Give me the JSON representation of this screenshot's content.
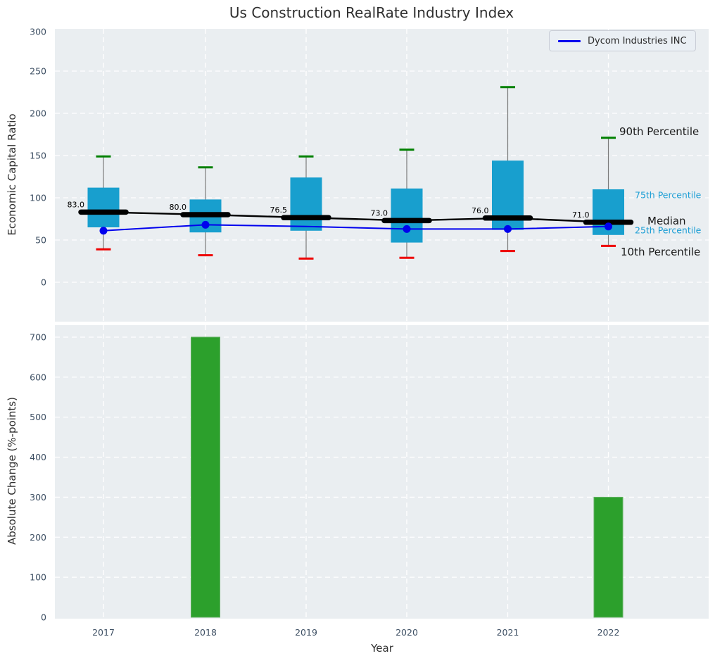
{
  "figure": {
    "title": "Us Construction RealRate Industry Index"
  },
  "legend": {
    "label": "Dycom Industries INC",
    "line_color": "#0000ee"
  },
  "axes": {
    "top_ylabel": "Economic Capital Ratio",
    "bottom_ylabel": "Absolute Change (%-points)",
    "xlabel": "Year"
  },
  "chart_data": [
    {
      "type": "boxplot-timeseries",
      "title": "Us Construction RealRate Industry Index",
      "ylabel": "Economic Capital Ratio",
      "categories": [
        "2017",
        "2018",
        "2019",
        "2020",
        "2021",
        "2022"
      ],
      "yticks": [
        0,
        50,
        100,
        150,
        200,
        250,
        300
      ],
      "ylim": [
        -46,
        300
      ],
      "grid": true,
      "legend_position": "upper right",
      "series": [
        {
          "name": "90th Percentile",
          "values": [
            149,
            136,
            149,
            157,
            231,
            171
          ]
        },
        {
          "name": "75th Percentile",
          "values": [
            112,
            98,
            124,
            111,
            144,
            110
          ]
        },
        {
          "name": "Median",
          "values": [
            83.0,
            80.0,
            76.5,
            73.0,
            76.0,
            71.0
          ]
        },
        {
          "name": "25th Percentile",
          "values": [
            65,
            59,
            61,
            47,
            62,
            56
          ]
        },
        {
          "name": "10th Percentile",
          "values": [
            39,
            32,
            28,
            29,
            37,
            43
          ]
        },
        {
          "name": "Dycom Industries INC",
          "values": [
            61,
            68,
            66,
            63,
            63,
            66
          ]
        }
      ],
      "company_markers": [
        true,
        true,
        false,
        true,
        true,
        true
      ],
      "median_labels": [
        "83.0",
        "80.0",
        "76.5",
        "73.0",
        "76.0",
        "71.0"
      ],
      "annotations": [
        "90th Percentile",
        "75th Percentile",
        "Median",
        "25th Percentile",
        "10th Percentile"
      ],
      "colors": {
        "box_fill": "#189fce",
        "median_line": "#000000",
        "company_line": "#0000ee",
        "p90_cap": "#008000",
        "p10_cap": "#ee0000",
        "whisker": "#7a7a7a",
        "percentile_label": "#1b9ed5",
        "plot_bg": "#eaeef1",
        "grid": "#ffffff",
        "tick_label": "#3d4f63"
      }
    },
    {
      "type": "bar",
      "ylabel": "Absolute Change (%-points)",
      "xlabel": "Year",
      "categories": [
        "2017",
        "2018",
        "2019",
        "2020",
        "2021",
        "2022"
      ],
      "values": [
        null,
        700,
        null,
        null,
        null,
        300
      ],
      "yticks": [
        0,
        100,
        200,
        300,
        400,
        500,
        600,
        700
      ],
      "ylim": [
        0,
        730
      ],
      "grid": true,
      "colors": {
        "bar_fill": "#2ca02c",
        "bar_edge": "#62b162",
        "plot_bg": "#eaeef1",
        "grid": "#ffffff",
        "tick_label": "#3d4f63"
      }
    }
  ]
}
